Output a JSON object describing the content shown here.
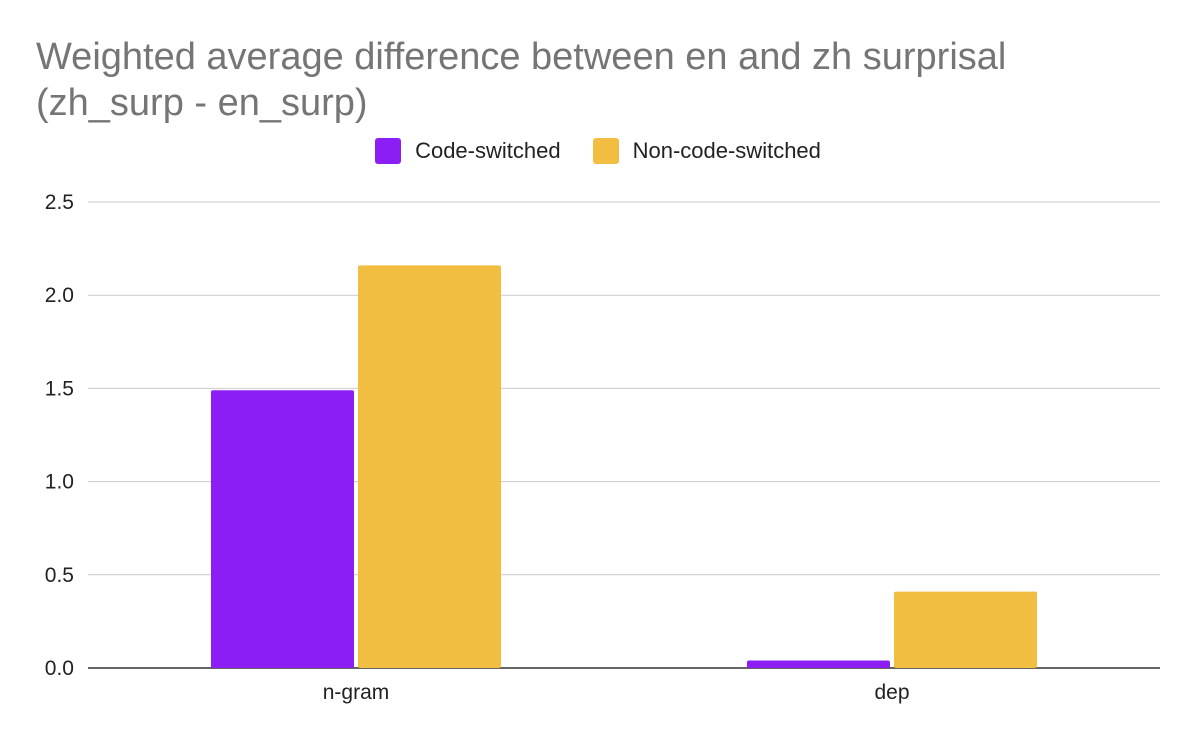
{
  "chart_data": {
    "type": "bar",
    "title_lines": [
      "Weighted average difference between en and zh surprisal",
      "(zh_surp - en_surp)"
    ],
    "categories": [
      "n-gram",
      "dep"
    ],
    "series": [
      {
        "name": "Code-switched",
        "color": "#8b1ef5",
        "values": [
          1.49,
          0.04
        ]
      },
      {
        "name": "Non-code-switched",
        "color": "#f1be42",
        "values": [
          2.16,
          0.41
        ]
      }
    ],
    "ylim": [
      0,
      2.5
    ],
    "yticks": [
      "0.0",
      "0.5",
      "1.0",
      "1.5",
      "2.0",
      "2.5"
    ],
    "grid": true,
    "legend_position": "top"
  }
}
